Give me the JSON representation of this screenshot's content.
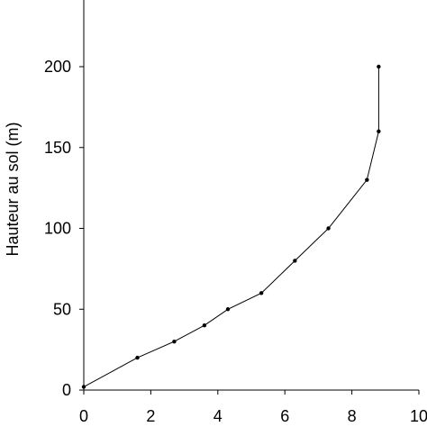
{
  "chart_data": {
    "type": "line",
    "title": "",
    "xlabel": "",
    "ylabel": "Hauteur au sol (m)",
    "xlim": [
      0,
      10
    ],
    "ylim": [
      0,
      200
    ],
    "x_ticks": [
      0,
      2,
      4,
      6,
      8,
      10
    ],
    "y_ticks": [
      0,
      50,
      100,
      150,
      200
    ],
    "x_tick_labels": [
      "0",
      "2",
      "4",
      "6",
      "8",
      "10"
    ],
    "y_tick_labels": [
      "0",
      "50",
      "100",
      "150",
      "200"
    ],
    "grid": false,
    "legend": "none",
    "series": [
      {
        "points": [
          {
            "x": 0,
            "y": 2
          },
          {
            "x": 1.6,
            "y": 20
          },
          {
            "x": 2.7,
            "y": 30
          },
          {
            "x": 3.6,
            "y": 40
          },
          {
            "x": 4.3,
            "y": 50
          },
          {
            "x": 5.3,
            "y": 60
          },
          {
            "x": 6.3,
            "y": 80
          },
          {
            "x": 7.3,
            "y": 100
          },
          {
            "x": 8.45,
            "y": 130
          },
          {
            "x": 8.8,
            "y": 160
          },
          {
            "x": 8.8,
            "y": 200
          }
        ],
        "color": "#000000"
      }
    ]
  }
}
